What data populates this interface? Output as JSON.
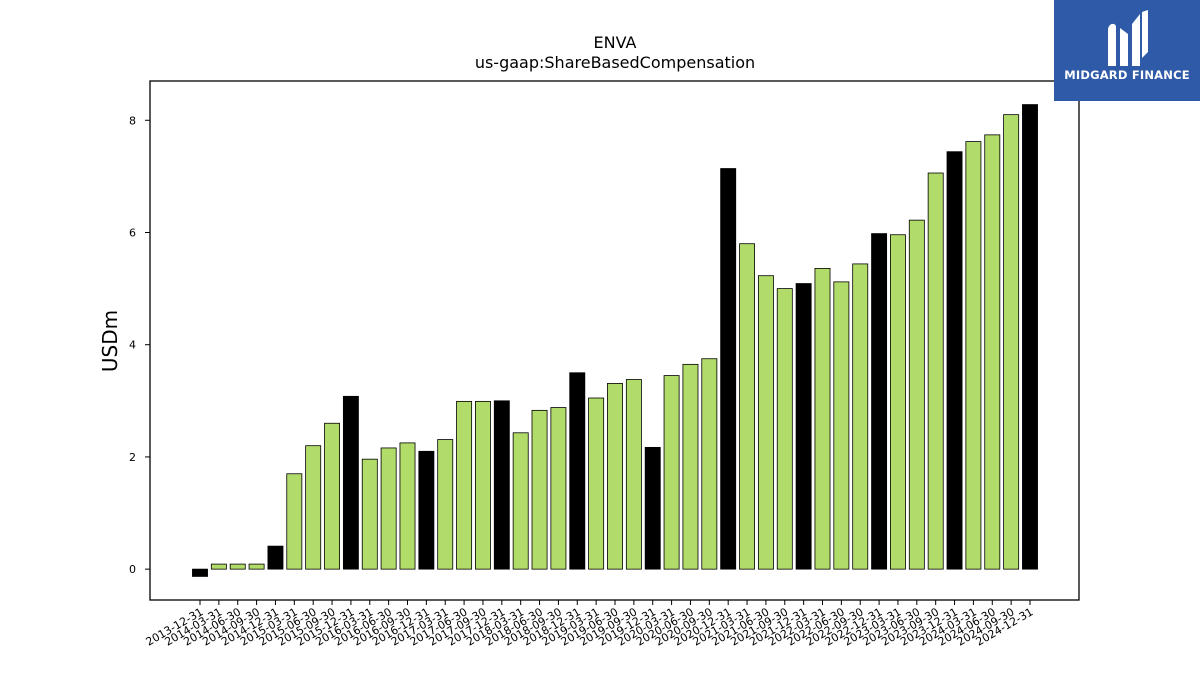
{
  "chart_data": {
    "type": "bar",
    "title": "ENVA",
    "subtitle": "us-gaap:ShareBasedCompensation",
    "ylabel": "USDm",
    "xlabel": "",
    "ylim": [
      -0.55,
      8.7
    ],
    "yticks": [
      0,
      2,
      4,
      6,
      8
    ],
    "grid": false,
    "colors": {
      "quarter": "#b2dc6a",
      "year_end": "#000000",
      "edge": "#000000"
    },
    "categories": [
      "2013-12-31",
      "2014-03-31",
      "2014-06-30",
      "2014-09-30",
      "2014-12-31",
      "2015-03-31",
      "2015-06-30",
      "2015-09-30",
      "2015-12-31",
      "2016-03-31",
      "2016-06-30",
      "2016-09-30",
      "2016-12-31",
      "2017-03-31",
      "2017-06-30",
      "2017-09-30",
      "2017-12-31",
      "2018-03-31",
      "2018-06-30",
      "2018-09-30",
      "2018-12-31",
      "2019-03-31",
      "2019-06-30",
      "2019-09-30",
      "2019-12-31",
      "2020-03-31",
      "2020-06-30",
      "2020-09-30",
      "2020-12-31",
      "2021-03-31",
      "2021-06-30",
      "2021-09-30",
      "2021-12-31",
      "2022-03-31",
      "2022-06-30",
      "2022-09-30",
      "2022-12-31",
      "2023-03-31",
      "2023-06-30",
      "2023-09-30",
      "2023-12-31",
      "2024-03-31",
      "2024-06-30",
      "2024-09-30",
      "2024-12-31"
    ],
    "values": [
      -0.13,
      0.09,
      0.09,
      0.09,
      0.41,
      1.7,
      2.2,
      2.6,
      3.08,
      1.96,
      2.16,
      2.25,
      2.1,
      2.31,
      2.99,
      2.99,
      3.0,
      2.43,
      2.83,
      2.88,
      3.5,
      3.05,
      3.31,
      3.38,
      2.17,
      3.45,
      3.65,
      3.75,
      7.14,
      5.8,
      5.23,
      5.0,
      5.09,
      5.36,
      5.12,
      5.44,
      5.98,
      5.96,
      6.22,
      7.06,
      7.44,
      7.62,
      7.74,
      8.1,
      8.28
    ],
    "year_end": [
      true,
      false,
      false,
      false,
      true,
      false,
      false,
      false,
      true,
      false,
      false,
      false,
      true,
      false,
      false,
      false,
      true,
      false,
      false,
      false,
      true,
      false,
      false,
      false,
      true,
      false,
      false,
      false,
      true,
      false,
      false,
      false,
      true,
      false,
      false,
      false,
      true,
      false,
      false,
      false,
      true,
      false,
      false,
      false,
      true
    ]
  },
  "logo": {
    "text": "MIDGARD FINANCE",
    "bg": "#2e5aa8",
    "icon": "midgard-logo-icon"
  }
}
